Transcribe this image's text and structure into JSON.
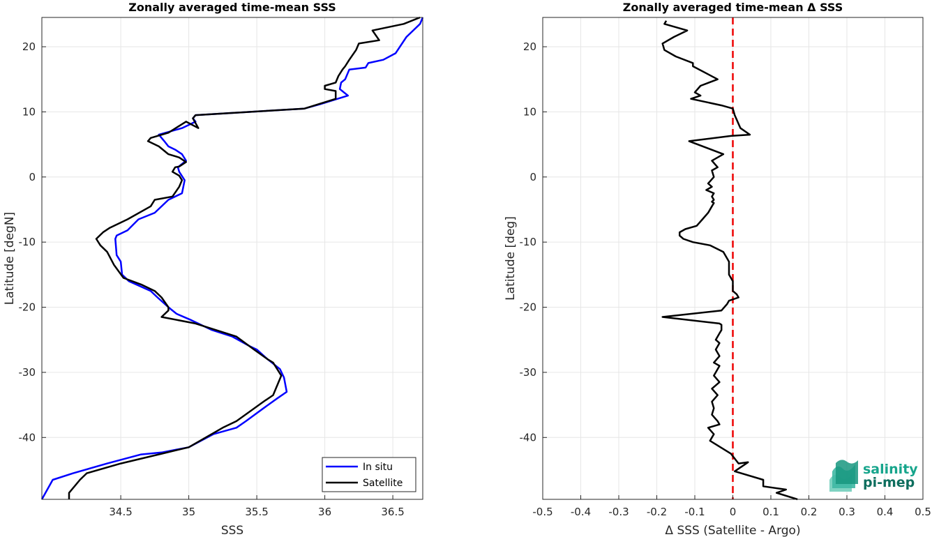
{
  "chart_data": [
    {
      "type": "line",
      "title": "Zonally averaged time-mean SSS",
      "xlabel": "SSS",
      "ylabel": "Latitude [degN]",
      "xlim": [
        33.92,
        36.72
      ],
      "ylim": [
        -49.5,
        24.5
      ],
      "xticks": [
        34.5,
        35,
        35.5,
        36,
        36.5
      ],
      "xticklabels": [
        "34.5",
        "35",
        "35.5",
        "36",
        "36.5"
      ],
      "yticks": [
        20,
        10,
        0,
        -10,
        -20,
        -30,
        -40
      ],
      "yticklabels": [
        "20",
        "10",
        "0",
        "-10",
        "-20",
        "-30",
        "-40"
      ],
      "grid": true,
      "legend_position": "bottom-right",
      "series": [
        {
          "name": "In situ",
          "color": "#0000ff",
          "points": [
            [
              36.72,
              24.5
            ],
            [
              36.7,
              23.5
            ],
            [
              36.6,
              21.5
            ],
            [
              36.52,
              19
            ],
            [
              36.43,
              18
            ],
            [
              36.32,
              17.5
            ],
            [
              36.3,
              16.8
            ],
            [
              36.18,
              16.5
            ],
            [
              36.15,
              15
            ],
            [
              36.12,
              14.5
            ],
            [
              36.11,
              13.5
            ],
            [
              36.17,
              12.5
            ],
            [
              35.97,
              11.2
            ],
            [
              35.85,
              10.5
            ],
            [
              35.05,
              9.5
            ],
            [
              35.03,
              9
            ],
            [
              35.05,
              8.5
            ],
            [
              35.0,
              8
            ],
            [
              34.95,
              7.5
            ],
            [
              34.78,
              6.5
            ],
            [
              34.82,
              5.5
            ],
            [
              34.85,
              4.7
            ],
            [
              34.9,
              4.2
            ],
            [
              34.95,
              3.5
            ],
            [
              34.98,
              2.5
            ],
            [
              34.92,
              1.5
            ],
            [
              34.93,
              0.8
            ],
            [
              34.97,
              -0.5
            ],
            [
              34.95,
              -2.5
            ],
            [
              34.85,
              -3.5
            ],
            [
              34.75,
              -5.5
            ],
            [
              34.63,
              -6.5
            ],
            [
              34.55,
              -8.2
            ],
            [
              34.47,
              -9
            ],
            [
              34.46,
              -9.5
            ],
            [
              34.47,
              -12
            ],
            [
              34.5,
              -13
            ],
            [
              34.51,
              -15
            ],
            [
              34.56,
              -16
            ],
            [
              34.72,
              -17.5
            ],
            [
              34.77,
              -18.5
            ],
            [
              34.85,
              -20
            ],
            [
              34.91,
              -21
            ],
            [
              35.02,
              -22
            ],
            [
              35.17,
              -23.5
            ],
            [
              35.32,
              -24.5
            ],
            [
              35.45,
              -26
            ],
            [
              35.5,
              -26.5
            ],
            [
              35.58,
              -28
            ],
            [
              35.67,
              -29.5
            ],
            [
              35.7,
              -30.8
            ],
            [
              35.72,
              -33
            ],
            [
              35.65,
              -34
            ],
            [
              35.55,
              -35.5
            ],
            [
              35.42,
              -37.5
            ],
            [
              35.35,
              -38.5
            ],
            [
              35.18,
              -39.5
            ],
            [
              35.0,
              -41.5
            ],
            [
              34.8,
              -42.3
            ],
            [
              34.65,
              -42.6
            ],
            [
              34.4,
              -44
            ],
            [
              34.15,
              -45.5
            ],
            [
              34.0,
              -46.5
            ],
            [
              33.92,
              -49.5
            ]
          ]
        },
        {
          "name": "Satellite",
          "color": "#000000",
          "points": [
            [
              36.7,
              24.5
            ],
            [
              36.58,
              23.5
            ],
            [
              36.35,
              22.5
            ],
            [
              36.4,
              21
            ],
            [
              36.25,
              20.5
            ],
            [
              36.23,
              19.5
            ],
            [
              36.18,
              18
            ],
            [
              36.15,
              17
            ],
            [
              36.13,
              16.5
            ],
            [
              36.1,
              15.5
            ],
            [
              36.08,
              14.5
            ],
            [
              36.0,
              14
            ],
            [
              36.0,
              13.5
            ],
            [
              36.08,
              13.2
            ],
            [
              36.08,
              12
            ],
            [
              35.85,
              10.5
            ],
            [
              35.05,
              9.5
            ],
            [
              35.03,
              9
            ],
            [
              35.07,
              7.5
            ],
            [
              34.98,
              8.5
            ],
            [
              34.85,
              6.8
            ],
            [
              34.72,
              6
            ],
            [
              34.7,
              5.5
            ],
            [
              34.78,
              4.7
            ],
            [
              34.85,
              3.5
            ],
            [
              34.93,
              3
            ],
            [
              34.98,
              2.3
            ],
            [
              34.93,
              1.6
            ],
            [
              34.9,
              1.5
            ],
            [
              34.88,
              0.8
            ],
            [
              34.93,
              0.2
            ],
            [
              34.95,
              -0.5
            ],
            [
              34.93,
              -1.5
            ],
            [
              34.88,
              -3
            ],
            [
              34.75,
              -3.5
            ],
            [
              34.72,
              -4.5
            ],
            [
              34.55,
              -6.5
            ],
            [
              34.42,
              -7.8
            ],
            [
              34.37,
              -8.5
            ],
            [
              34.32,
              -9.5
            ],
            [
              34.35,
              -10.5
            ],
            [
              34.4,
              -11.5
            ],
            [
              34.45,
              -13.5
            ],
            [
              34.52,
              -15.5
            ],
            [
              34.65,
              -16.5
            ],
            [
              34.75,
              -17.5
            ],
            [
              34.8,
              -18.5
            ],
            [
              34.85,
              -20
            ],
            [
              34.85,
              -20.5
            ],
            [
              34.8,
              -21.5
            ],
            [
              35.05,
              -22.5
            ],
            [
              35.35,
              -24.5
            ],
            [
              35.48,
              -26.5
            ],
            [
              35.58,
              -28
            ],
            [
              35.62,
              -28.5
            ],
            [
              35.68,
              -30.5
            ],
            [
              35.62,
              -33.5
            ],
            [
              35.55,
              -34.5
            ],
            [
              35.45,
              -36
            ],
            [
              35.35,
              -37.5
            ],
            [
              35.25,
              -38.5
            ],
            [
              35.0,
              -41.5
            ],
            [
              34.8,
              -42.5
            ],
            [
              34.5,
              -44
            ],
            [
              34.25,
              -45.5
            ],
            [
              34.2,
              -46.5
            ],
            [
              34.12,
              -48.5
            ],
            [
              34.12,
              -49.5
            ]
          ]
        }
      ]
    },
    {
      "type": "line",
      "title": "Zonally averaged time-mean Δ SSS",
      "xlabel": "Δ SSS (Satellite - Argo)",
      "ylabel": "Latitude [deg]",
      "xlim": [
        -0.5,
        0.5
      ],
      "ylim": [
        -49.5,
        24.5
      ],
      "xticks": [
        -0.5,
        -0.4,
        -0.3,
        -0.2,
        -0.1,
        0,
        0.1,
        0.2,
        0.3,
        0.4,
        0.5
      ],
      "xticklabels": [
        "-0.5",
        "-0.4",
        "-0.3",
        "-0.2",
        "-0.1",
        "0",
        "0.1",
        "0.2",
        "0.3",
        "0.4",
        "0.5"
      ],
      "yticks": [
        20,
        10,
        0,
        -10,
        -20,
        -30,
        -40
      ],
      "yticklabels": [
        "20",
        "10",
        "0",
        "-10",
        "-20",
        "-30",
        "-40"
      ],
      "grid": true,
      "reference_line": {
        "x": 0,
        "color": "#ee0000",
        "style": "dashed"
      },
      "series": [
        {
          "color": "#000000",
          "points": [
            [
              -0.175,
              24
            ],
            [
              -0.18,
              23.5
            ],
            [
              -0.12,
              22.5
            ],
            [
              -0.155,
              21.5
            ],
            [
              -0.185,
              20.5
            ],
            [
              -0.18,
              19.5
            ],
            [
              -0.15,
              18.5
            ],
            [
              -0.105,
              17.5
            ],
            [
              -0.105,
              17
            ],
            [
              -0.04,
              15
            ],
            [
              -0.085,
              14
            ],
            [
              -0.1,
              13
            ],
            [
              -0.085,
              12.5
            ],
            [
              -0.11,
              12
            ],
            [
              -0.03,
              11
            ],
            [
              0.0,
              10.5
            ],
            [
              0.005,
              9.5
            ],
            [
              0.02,
              7.5
            ],
            [
              0.045,
              6.5
            ],
            [
              -0.005,
              6.3
            ],
            [
              -0.115,
              5.5
            ],
            [
              -0.025,
              3.5
            ],
            [
              -0.055,
              2.5
            ],
            [
              -0.04,
              1.5
            ],
            [
              -0.055,
              1
            ],
            [
              -0.05,
              0
            ],
            [
              -0.065,
              -1
            ],
            [
              -0.055,
              -1.5
            ],
            [
              -0.07,
              -2
            ],
            [
              -0.05,
              -2.5
            ],
            [
              -0.055,
              -3
            ],
            [
              -0.05,
              -3.5
            ],
            [
              -0.055,
              -3.8
            ],
            [
              -0.05,
              -4
            ],
            [
              -0.055,
              -4.5
            ],
            [
              -0.065,
              -5.5
            ],
            [
              -0.08,
              -6.5
            ],
            [
              -0.095,
              -7.5
            ],
            [
              -0.125,
              -8
            ],
            [
              -0.14,
              -8.5
            ],
            [
              -0.14,
              -9
            ],
            [
              -0.13,
              -9.5
            ],
            [
              -0.105,
              -10
            ],
            [
              -0.06,
              -10.5
            ],
            [
              -0.025,
              -11.5
            ],
            [
              -0.01,
              -13
            ],
            [
              -0.01,
              -14
            ],
            [
              -0.01,
              -15
            ],
            [
              0.0,
              -16
            ],
            [
              0.0,
              -17.5
            ],
            [
              0.01,
              -18
            ],
            [
              0.015,
              -18.5
            ],
            [
              -0.01,
              -19
            ],
            [
              -0.015,
              -19.5
            ],
            [
              -0.03,
              -20.5
            ],
            [
              -0.185,
              -21.5
            ],
            [
              -0.035,
              -22.5
            ],
            [
              -0.03,
              -22.7
            ],
            [
              -0.03,
              -23.5
            ],
            [
              -0.035,
              -24
            ],
            [
              -0.045,
              -25
            ],
            [
              -0.035,
              -25.5
            ],
            [
              -0.045,
              -26.5
            ],
            [
              -0.035,
              -27.5
            ],
            [
              -0.05,
              -28.5
            ],
            [
              -0.035,
              -29
            ],
            [
              -0.05,
              -30.5
            ],
            [
              -0.035,
              -31.5
            ],
            [
              -0.055,
              -32.5
            ],
            [
              -0.04,
              -33.5
            ],
            [
              -0.055,
              -34.5
            ],
            [
              -0.05,
              -35.5
            ],
            [
              -0.055,
              -36.5
            ],
            [
              -0.04,
              -37.5
            ],
            [
              -0.035,
              -38
            ],
            [
              -0.065,
              -38.5
            ],
            [
              -0.05,
              -39.5
            ],
            [
              -0.055,
              -40
            ],
            [
              -0.06,
              -40.5
            ],
            [
              -0.005,
              -42.5
            ],
            [
              0.015,
              -44
            ],
            [
              0.04,
              -43.8
            ],
            [
              0.005,
              -45.2
            ],
            [
              0.08,
              -46.5
            ],
            [
              0.08,
              -47.5
            ],
            [
              0.14,
              -48
            ],
            [
              0.115,
              -48.5
            ],
            [
              0.17,
              -49.5
            ]
          ]
        }
      ]
    }
  ],
  "legend": {
    "items": [
      "In situ",
      "Satellite"
    ]
  },
  "logo": {
    "line1": "salinity",
    "line2": "pi-mep"
  }
}
